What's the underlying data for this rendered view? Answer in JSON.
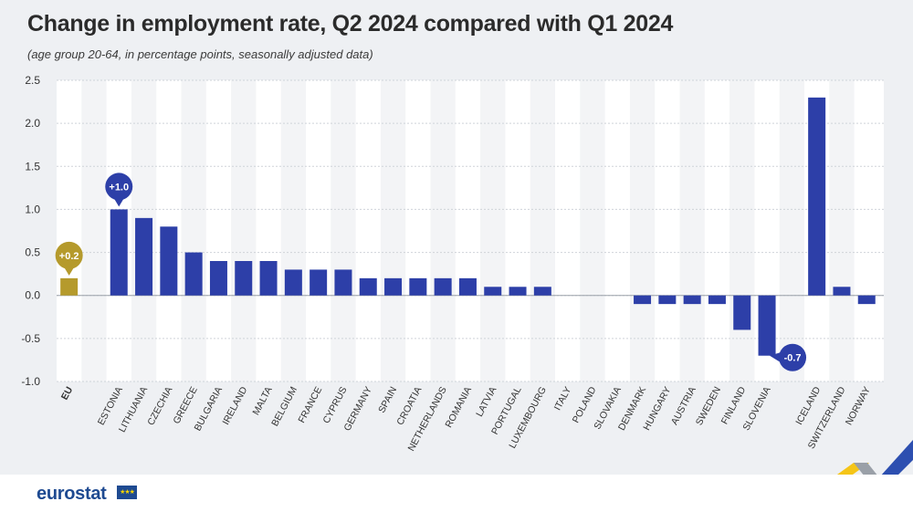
{
  "title": "Change in employment rate, Q2 2024 compared with Q1 2024",
  "subtitle": "(age group 20-64, in percentage points, seasonally adjusted data)",
  "logo": {
    "text": "eurostat",
    "flag": "★★★"
  },
  "colors": {
    "eu": "#b59a2c",
    "country": "#2d3fa8",
    "grid": "#cfd3d9",
    "band": "#ffffff",
    "background": "#eef0f3"
  },
  "chart_data": {
    "type": "bar",
    "title": "Change in employment rate, Q2 2024 compared with Q1 2024",
    "ylabel": "percentage points",
    "ylim": [
      -1.0,
      2.5
    ],
    "yticks": [
      "2.5",
      "2.0",
      "1.5",
      "1.0",
      "0.5",
      "0.0",
      "-0.5",
      "-1.0"
    ],
    "ytick_values": [
      2.5,
      2.0,
      1.5,
      1.0,
      0.5,
      0.0,
      -0.5,
      -1.0
    ],
    "categories": [
      "EU",
      "ESTONIA",
      "LITHUANIA",
      "CZECHIA",
      "GREECE",
      "BULGARIA",
      "IRELAND",
      "MALTA",
      "BELGIUM",
      "FRANCE",
      "CYPRUS",
      "GERMANY",
      "SPAIN",
      "CROATIA",
      "NETHERLANDS",
      "ROMANIA",
      "LATVIA",
      "PORTUGAL",
      "LUXEMBOURG",
      "ITALY",
      "POLAND",
      "SLOVAKIA",
      "DENMARK",
      "HUNGARY",
      "AUSTRIA",
      "SWEDEN",
      "FINLAND",
      "SLOVENIA",
      "ICELAND",
      "SWITZERLAND",
      "NORWAY"
    ],
    "values": [
      0.2,
      1.0,
      0.9,
      0.8,
      0.5,
      0.4,
      0.4,
      0.4,
      0.3,
      0.3,
      0.3,
      0.2,
      0.2,
      0.2,
      0.2,
      0.2,
      0.1,
      0.1,
      0.1,
      0.0,
      0.0,
      0.0,
      -0.1,
      -0.1,
      -0.1,
      -0.1,
      -0.4,
      -0.7,
      2.3,
      0.1,
      -0.1
    ],
    "callouts": [
      {
        "category": "EU",
        "label": "+0.2"
      },
      {
        "category": "ESTONIA",
        "label": "+1.0"
      },
      {
        "category": "SLOVENIA",
        "label": "-0.7"
      }
    ]
  }
}
